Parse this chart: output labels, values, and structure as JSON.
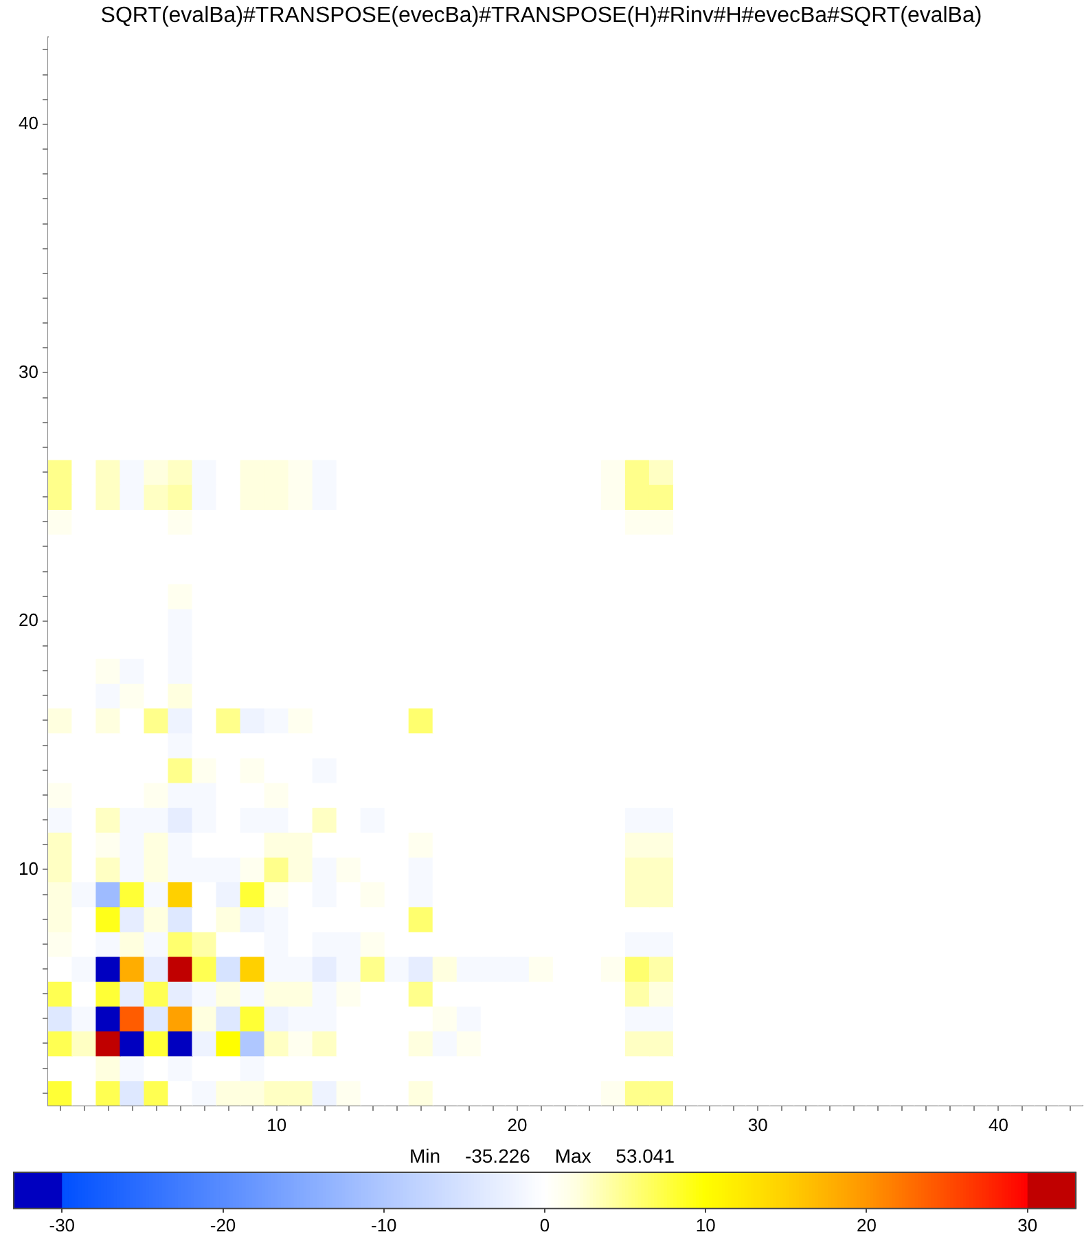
{
  "chart_data": {
    "type": "heatmap",
    "title": "SQRT(evalBa)#TRANSPOSE(evecBa)#TRANSPOSE(H)#Rinv#H#evecBa#SQRT(evalBa)",
    "annotations": [
      "Min -35.226 Max 53.041"
    ],
    "categories": [
      null,
      null,
      null,
      null,
      null,
      null,
      null,
      null,
      null,
      "10",
      null,
      null,
      null,
      null,
      null,
      null,
      null,
      null,
      null,
      "20",
      null,
      null,
      null,
      null,
      null,
      null,
      null,
      null,
      null,
      "30",
      null,
      null,
      null,
      null,
      null,
      null,
      null,
      null,
      null,
      "40",
      null,
      null,
      null
    ],
    "y_categories": [
      null,
      null,
      null,
      "40",
      null,
      null,
      null,
      null,
      null,
      null,
      null,
      null,
      null,
      "30",
      null,
      null,
      null,
      null,
      null,
      null,
      null,
      null,
      null,
      "20",
      null,
      null,
      null,
      null,
      null,
      null,
      null,
      null,
      null,
      "10",
      null,
      null,
      null,
      null,
      null,
      null,
      null,
      null,
      null
    ],
    "clim": [
      -33,
      33
    ],
    "cticks": [
      -30,
      -20,
      -10,
      0,
      10,
      20,
      30
    ],
    "cells": [
      [
        0,
        0,
        0,
        0,
        0,
        0,
        0,
        0,
        0,
        0,
        0,
        0,
        0,
        0,
        0,
        0,
        0,
        0,
        0,
        0,
        0,
        0,
        0,
        0,
        0,
        0,
        0,
        0,
        0,
        0,
        0,
        0,
        0,
        0,
        0,
        0,
        0,
        0,
        0,
        0,
        0,
        0,
        0
      ],
      [
        0,
        0,
        0,
        0,
        0,
        0,
        0,
        0,
        0,
        0,
        0,
        0,
        0,
        0,
        0,
        0,
        0,
        0,
        0,
        0,
        0,
        0,
        0,
        0,
        0,
        0,
        0,
        0,
        0,
        0,
        0,
        0,
        0,
        0,
        0,
        0,
        0,
        0,
        0,
        0,
        0,
        0,
        0
      ],
      [
        0,
        0,
        0,
        0,
        0,
        0,
        0,
        0,
        0,
        0,
        0,
        0,
        0,
        0,
        0,
        0,
        0,
        0,
        0,
        0,
        0,
        0,
        0,
        0,
        0,
        0,
        0,
        0,
        0,
        0,
        0,
        0,
        0,
        0,
        0,
        0,
        0,
        0,
        0,
        0,
        0,
        0,
        0
      ],
      [
        0,
        0,
        0,
        0,
        0,
        0,
        0,
        0,
        0,
        0,
        0,
        0,
        0,
        0,
        0,
        0,
        0,
        0,
        0,
        0,
        0,
        0,
        0,
        0,
        0,
        0,
        0,
        0,
        0,
        0,
        0,
        0,
        0,
        0,
        0,
        0,
        0,
        0,
        0,
        0,
        0,
        0,
        0
      ],
      [
        0,
        0,
        0,
        0,
        0,
        0,
        0,
        0,
        0,
        0,
        0,
        0,
        0,
        0,
        0,
        0,
        0,
        0,
        0,
        0,
        0,
        0,
        0,
        0,
        0,
        0,
        0,
        0,
        0,
        0,
        0,
        0,
        0,
        0,
        0,
        0,
        0,
        0,
        0,
        0,
        0,
        0,
        0
      ],
      [
        0,
        0,
        0,
        0,
        0,
        0,
        0,
        0,
        0,
        0,
        0,
        0,
        0,
        0,
        0,
        0,
        0,
        0,
        0,
        0,
        0,
        0,
        0,
        0,
        0,
        0,
        0,
        0,
        0,
        0,
        0,
        0,
        0,
        0,
        0,
        0,
        0,
        0,
        0,
        0,
        0,
        0,
        0
      ],
      [
        0,
        0,
        0,
        0,
        0,
        0,
        0,
        0,
        0,
        0,
        0,
        0,
        0,
        0,
        0,
        0,
        0,
        0,
        0,
        0,
        0,
        0,
        0,
        0,
        0,
        0,
        0,
        0,
        0,
        0,
        0,
        0,
        0,
        0,
        0,
        0,
        0,
        0,
        0,
        0,
        0,
        0,
        0
      ],
      [
        0,
        0,
        0,
        0,
        0,
        0,
        0,
        0,
        0,
        0,
        0,
        0,
        0,
        0,
        0,
        0,
        0,
        0,
        0,
        0,
        0,
        0,
        0,
        0,
        0,
        0,
        0,
        0,
        0,
        0,
        0,
        0,
        0,
        0,
        0,
        0,
        0,
        0,
        0,
        0,
        0,
        0,
        0
      ],
      [
        0,
        0,
        0,
        0,
        0,
        0,
        0,
        0,
        0,
        0,
        0,
        0,
        0,
        0,
        0,
        0,
        0,
        0,
        0,
        0,
        0,
        0,
        0,
        0,
        0,
        0,
        0,
        0,
        0,
        0,
        0,
        0,
        0,
        0,
        0,
        0,
        0,
        0,
        0,
        0,
        0,
        0,
        0
      ],
      [
        0,
        0,
        0,
        0,
        0,
        0,
        0,
        0,
        0,
        0,
        0,
        0,
        0,
        0,
        0,
        0,
        0,
        0,
        0,
        0,
        0,
        0,
        0,
        0,
        0,
        0,
        0,
        0,
        0,
        0,
        0,
        0,
        0,
        0,
        0,
        0,
        0,
        0,
        0,
        0,
        0,
        0,
        0
      ],
      [
        0,
        0,
        0,
        0,
        0,
        0,
        0,
        0,
        0,
        0,
        0,
        0,
        0,
        0,
        0,
        0,
        0,
        0,
        0,
        0,
        0,
        0,
        0,
        0,
        0,
        0,
        0,
        0,
        0,
        0,
        0,
        0,
        0,
        0,
        0,
        0,
        0,
        0,
        0,
        0,
        0,
        0,
        0
      ],
      [
        0,
        0,
        0,
        0,
        0,
        0,
        0,
        0,
        0,
        0,
        0,
        0,
        0,
        0,
        0,
        0,
        0,
        0,
        0,
        0,
        0,
        0,
        0,
        0,
        0,
        0,
        0,
        0,
        0,
        0,
        0,
        0,
        0,
        0,
        0,
        0,
        0,
        0,
        0,
        0,
        0,
        0,
        0
      ],
      [
        0,
        0,
        0,
        0,
        0,
        0,
        0,
        0,
        0,
        0,
        0,
        0,
        0,
        0,
        0,
        0,
        0,
        0,
        0,
        0,
        0,
        0,
        0,
        0,
        0,
        0,
        0,
        0,
        0,
        0,
        0,
        0,
        0,
        0,
        0,
        0,
        0,
        0,
        0,
        0,
        0,
        0,
        0
      ],
      [
        0,
        0,
        0,
        0,
        0,
        0,
        0,
        0,
        0,
        0,
        0,
        0,
        0,
        0,
        0,
        0,
        0,
        0,
        0,
        0,
        0,
        0,
        0,
        0,
        0,
        0,
        0,
        0,
        0,
        0,
        0,
        0,
        0,
        0,
        0,
        0,
        0,
        0,
        0,
        0,
        0,
        0,
        0
      ],
      [
        0,
        0,
        0,
        0,
        0,
        0,
        0,
        0,
        0,
        0,
        0,
        0,
        0,
        0,
        0,
        0,
        0,
        0,
        0,
        0,
        0,
        0,
        0,
        0,
        0,
        0,
        0,
        0,
        0,
        0,
        0,
        0,
        0,
        0,
        0,
        0,
        0,
        0,
        0,
        0,
        0,
        0,
        0
      ],
      [
        0,
        0,
        0,
        0,
        0,
        0,
        0,
        0,
        0,
        0,
        0,
        0,
        0,
        0,
        0,
        0,
        0,
        0,
        0,
        0,
        0,
        0,
        0,
        0,
        0,
        0,
        0,
        0,
        0,
        0,
        0,
        0,
        0,
        0,
        0,
        0,
        0,
        0,
        0,
        0,
        0,
        0,
        0
      ],
      [
        0,
        0,
        0,
        0,
        0,
        0,
        0,
        0,
        0,
        0,
        0,
        0,
        0,
        0,
        0,
        0,
        0,
        0,
        0,
        0,
        0,
        0,
        0,
        0,
        0,
        0,
        0,
        0,
        0,
        0,
        0,
        0,
        0,
        0,
        0,
        0,
        0,
        0,
        0,
        0,
        0,
        0,
        0
      ],
      [
        5,
        0,
        3,
        -1,
        2,
        3,
        -1,
        0,
        2,
        2,
        1,
        -1,
        0,
        0,
        0,
        0,
        0,
        0,
        0,
        0,
        0,
        0,
        0,
        1,
        5,
        3,
        0,
        0,
        0,
        0,
        0,
        0,
        0,
        0,
        0,
        0,
        0,
        0,
        0,
        0,
        0,
        0,
        0
      ],
      [
        5,
        0,
        3,
        -1,
        3,
        4,
        -1,
        0,
        2,
        2,
        1,
        -1,
        0,
        0,
        0,
        0,
        0,
        0,
        0,
        0,
        0,
        0,
        0,
        1,
        5,
        5,
        0,
        0,
        0,
        0,
        0,
        0,
        0,
        0,
        0,
        0,
        0,
        0,
        0,
        0,
        0,
        0,
        0
      ],
      [
        1,
        0,
        0,
        0,
        0,
        1,
        0,
        0,
        0,
        0,
        0,
        0,
        0,
        0,
        0,
        0,
        0,
        0,
        0,
        0,
        0,
        0,
        0,
        0,
        1,
        1,
        0,
        0,
        0,
        0,
        0,
        0,
        0,
        0,
        0,
        0,
        0,
        0,
        0,
        0,
        0,
        0,
        0
      ],
      [
        0,
        0,
        0,
        0,
        0,
        0,
        0,
        0,
        0,
        0,
        0,
        0,
        0,
        0,
        0,
        0,
        0,
        0,
        0,
        0,
        0,
        0,
        0,
        0,
        0,
        0,
        0,
        0,
        0,
        0,
        0,
        0,
        0,
        0,
        0,
        0,
        0,
        0,
        0,
        0,
        0,
        0,
        0
      ],
      [
        0,
        0,
        0,
        0,
        0,
        0,
        0,
        0,
        0,
        0,
        0,
        0,
        0,
        0,
        0,
        0,
        0,
        0,
        0,
        0,
        0,
        0,
        0,
        0,
        0,
        0,
        0,
        0,
        0,
        0,
        0,
        0,
        0,
        0,
        0,
        0,
        0,
        0,
        0,
        0,
        0,
        0,
        0
      ],
      [
        0,
        0,
        0,
        0,
        0,
        1,
        0,
        0,
        0,
        0,
        0,
        0,
        0,
        0,
        0,
        0,
        0,
        0,
        0,
        0,
        0,
        0,
        0,
        0,
        0,
        0,
        0,
        0,
        0,
        0,
        0,
        0,
        0,
        0,
        0,
        0,
        0,
        0,
        0,
        0,
        0,
        0,
        0
      ],
      [
        0,
        0,
        0,
        0,
        0,
        -1,
        0,
        0,
        0,
        0,
        0,
        0,
        0,
        0,
        0,
        0,
        0,
        0,
        0,
        0,
        0,
        0,
        0,
        0,
        0,
        0,
        0,
        0,
        0,
        0,
        0,
        0,
        0,
        0,
        0,
        0,
        0,
        0,
        0,
        0,
        0,
        0,
        0
      ],
      [
        0,
        0,
        0,
        0,
        0,
        -1,
        0,
        0,
        0,
        0,
        0,
        0,
        0,
        0,
        0,
        0,
        0,
        0,
        0,
        0,
        0,
        0,
        0,
        0,
        0,
        0,
        0,
        0,
        0,
        0,
        0,
        0,
        0,
        0,
        0,
        0,
        0,
        0,
        0,
        0,
        0,
        0,
        0
      ],
      [
        0,
        0,
        1,
        -1,
        0,
        -1,
        0,
        0,
        0,
        0,
        0,
        0,
        0,
        0,
        0,
        0,
        0,
        0,
        0,
        0,
        0,
        0,
        0,
        0,
        0,
        0,
        0,
        0,
        0,
        0,
        0,
        0,
        0,
        0,
        0,
        0,
        0,
        0,
        0,
        0,
        0,
        0,
        0
      ],
      [
        0,
        0,
        -1,
        1,
        0,
        2,
        0,
        0,
        0,
        0,
        0,
        0,
        0,
        0,
        0,
        0,
        0,
        0,
        0,
        0,
        0,
        0,
        0,
        0,
        0,
        0,
        0,
        0,
        0,
        0,
        0,
        0,
        0,
        0,
        0,
        0,
        0,
        0,
        0,
        0,
        0,
        0,
        0
      ],
      [
        2,
        0,
        2,
        0,
        5,
        -2,
        0,
        5,
        -2,
        -1,
        1,
        0,
        0,
        0,
        0,
        6,
        0,
        0,
        0,
        0,
        0,
        0,
        0,
        0,
        0,
        0,
        0,
        0,
        0,
        0,
        0,
        0,
        0,
        0,
        0,
        0,
        0,
        0,
        0,
        0,
        0,
        0,
        0
      ],
      [
        0,
        0,
        0,
        0,
        0,
        -1,
        0,
        0,
        0,
        0,
        0,
        0,
        0,
        0,
        0,
        0,
        0,
        0,
        0,
        0,
        0,
        0,
        0,
        0,
        0,
        0,
        0,
        0,
        0,
        0,
        0,
        0,
        0,
        0,
        0,
        0,
        0,
        0,
        0,
        0,
        0,
        0,
        0
      ],
      [
        0,
        0,
        0,
        0,
        0,
        5,
        1,
        0,
        1,
        0,
        0,
        -1,
        0,
        0,
        0,
        0,
        0,
        0,
        0,
        0,
        0,
        0,
        0,
        0,
        0,
        0,
        0,
        0,
        0,
        0,
        0,
        0,
        0,
        0,
        0,
        0,
        0,
        0,
        0,
        0,
        0,
        0,
        0
      ],
      [
        1,
        0,
        0,
        0,
        1,
        -1,
        -1,
        0,
        0,
        1,
        0,
        0,
        0,
        0,
        0,
        0,
        0,
        0,
        0,
        0,
        0,
        0,
        0,
        0,
        0,
        0,
        0,
        0,
        0,
        0,
        0,
        0,
        0,
        0,
        0,
        0,
        0,
        0,
        0,
        0,
        0,
        0,
        0
      ],
      [
        -1,
        0,
        3,
        -1,
        -1,
        -3,
        -1,
        0,
        -1,
        -1,
        0,
        3,
        0,
        -1,
        0,
        0,
        0,
        0,
        0,
        0,
        0,
        0,
        0,
        0,
        -1,
        -1,
        0,
        0,
        0,
        0,
        0,
        0,
        0,
        0,
        0,
        0,
        0,
        0,
        0,
        0,
        0,
        0,
        0
      ],
      [
        3,
        0,
        1,
        -1,
        2,
        -1,
        0,
        0,
        0,
        2,
        2,
        0,
        0,
        0,
        0,
        1,
        0,
        0,
        0,
        0,
        0,
        0,
        0,
        0,
        2,
        2,
        0,
        0,
        0,
        0,
        0,
        0,
        0,
        0,
        0,
        0,
        0,
        0,
        0,
        0,
        0,
        0,
        0
      ],
      [
        3,
        0,
        3,
        -1,
        2,
        -1,
        -1,
        -1,
        1,
        5,
        2,
        -1,
        1,
        0,
        0,
        -1,
        0,
        0,
        0,
        0,
        0,
        0,
        0,
        0,
        3,
        3,
        0,
        0,
        0,
        0,
        0,
        0,
        0,
        0,
        0,
        0,
        0,
        0,
        0,
        0,
        0,
        0,
        0
      ],
      [
        2,
        -1,
        -12,
        8,
        -1,
        15,
        0,
        -2,
        8,
        1,
        0,
        -1,
        0,
        1,
        0,
        -1,
        0,
        0,
        0,
        0,
        0,
        0,
        0,
        0,
        3,
        3,
        0,
        0,
        0,
        0,
        0,
        0,
        0,
        0,
        0,
        0,
        0,
        0,
        0,
        0,
        0,
        0,
        0
      ],
      [
        2,
        0,
        9,
        -3,
        2,
        -4,
        0,
        2,
        -2,
        -1,
        0,
        0,
        0,
        0,
        0,
        6,
        0,
        0,
        0,
        0,
        0,
        0,
        0,
        0,
        0,
        0,
        0,
        0,
        0,
        0,
        0,
        0,
        0,
        0,
        0,
        0,
        0,
        0,
        0,
        0,
        0,
        0,
        0
      ],
      [
        1,
        0,
        -1,
        2,
        -1,
        6,
        4,
        0,
        0,
        -1,
        0,
        -1,
        -1,
        1,
        0,
        0,
        0,
        0,
        0,
        0,
        0,
        0,
        0,
        0,
        -1,
        -1,
        0,
        0,
        0,
        0,
        0,
        0,
        0,
        0,
        0,
        0,
        0,
        0,
        0,
        0,
        0,
        0,
        0
      ],
      [
        0,
        -1,
        -32,
        18,
        -3,
        32,
        7,
        -5,
        15,
        -1,
        -1,
        -3,
        -1,
        5,
        -1,
        -3,
        2,
        -1,
        -1,
        -1,
        1,
        0,
        0,
        1,
        6,
        4,
        0,
        0,
        0,
        0,
        0,
        0,
        0,
        0,
        0,
        0,
        0,
        0,
        0,
        0,
        0,
        0,
        0
      ],
      [
        7,
        0,
        8,
        -3,
        7,
        -3,
        -1,
        2,
        -1,
        2,
        2,
        -1,
        1,
        0,
        0,
        5,
        0,
        0,
        0,
        0,
        0,
        0,
        0,
        0,
        4,
        2,
        0,
        0,
        0,
        0,
        0,
        0,
        0,
        0,
        0,
        0,
        0,
        0,
        0,
        0,
        0,
        0,
        0
      ],
      [
        -4,
        -1,
        -32,
        24,
        -4,
        19,
        2,
        -4,
        8,
        -2,
        -1,
        -1,
        0,
        0,
        0,
        0,
        1,
        -1,
        0,
        0,
        0,
        0,
        0,
        0,
        -1,
        -1,
        0,
        0,
        0,
        0,
        0,
        0,
        0,
        0,
        0,
        0,
        0,
        0,
        0,
        0,
        0,
        0,
        0
      ],
      [
        7,
        3,
        32,
        -32,
        8,
        -32,
        -2,
        10,
        -10,
        3,
        1,
        3,
        0,
        0,
        0,
        2,
        -1,
        1,
        0,
        0,
        0,
        0,
        0,
        0,
        3,
        3,
        0,
        0,
        0,
        0,
        0,
        0,
        0,
        0,
        0,
        0,
        0,
        0,
        0,
        0,
        0,
        0,
        0
      ],
      [
        0,
        0,
        2,
        -1,
        0,
        -1,
        0,
        0,
        -1,
        0,
        0,
        0,
        0,
        0,
        0,
        0,
        0,
        0,
        0,
        0,
        0,
        0,
        0,
        0,
        0,
        0,
        0,
        0,
        0,
        0,
        0,
        0,
        0,
        0,
        0,
        0,
        0,
        0,
        0,
        0,
        0,
        0,
        0
      ],
      [
        8,
        0,
        7,
        -4,
        7,
        0,
        -1,
        2,
        2,
        3,
        3,
        -2,
        1,
        0,
        0,
        2,
        0,
        0,
        0,
        0,
        0,
        0,
        0,
        1,
        5,
        5,
        0,
        0,
        0,
        0,
        0,
        0,
        0,
        0,
        0,
        0,
        0,
        0,
        0,
        0,
        0,
        0,
        0
      ]
    ]
  }
}
